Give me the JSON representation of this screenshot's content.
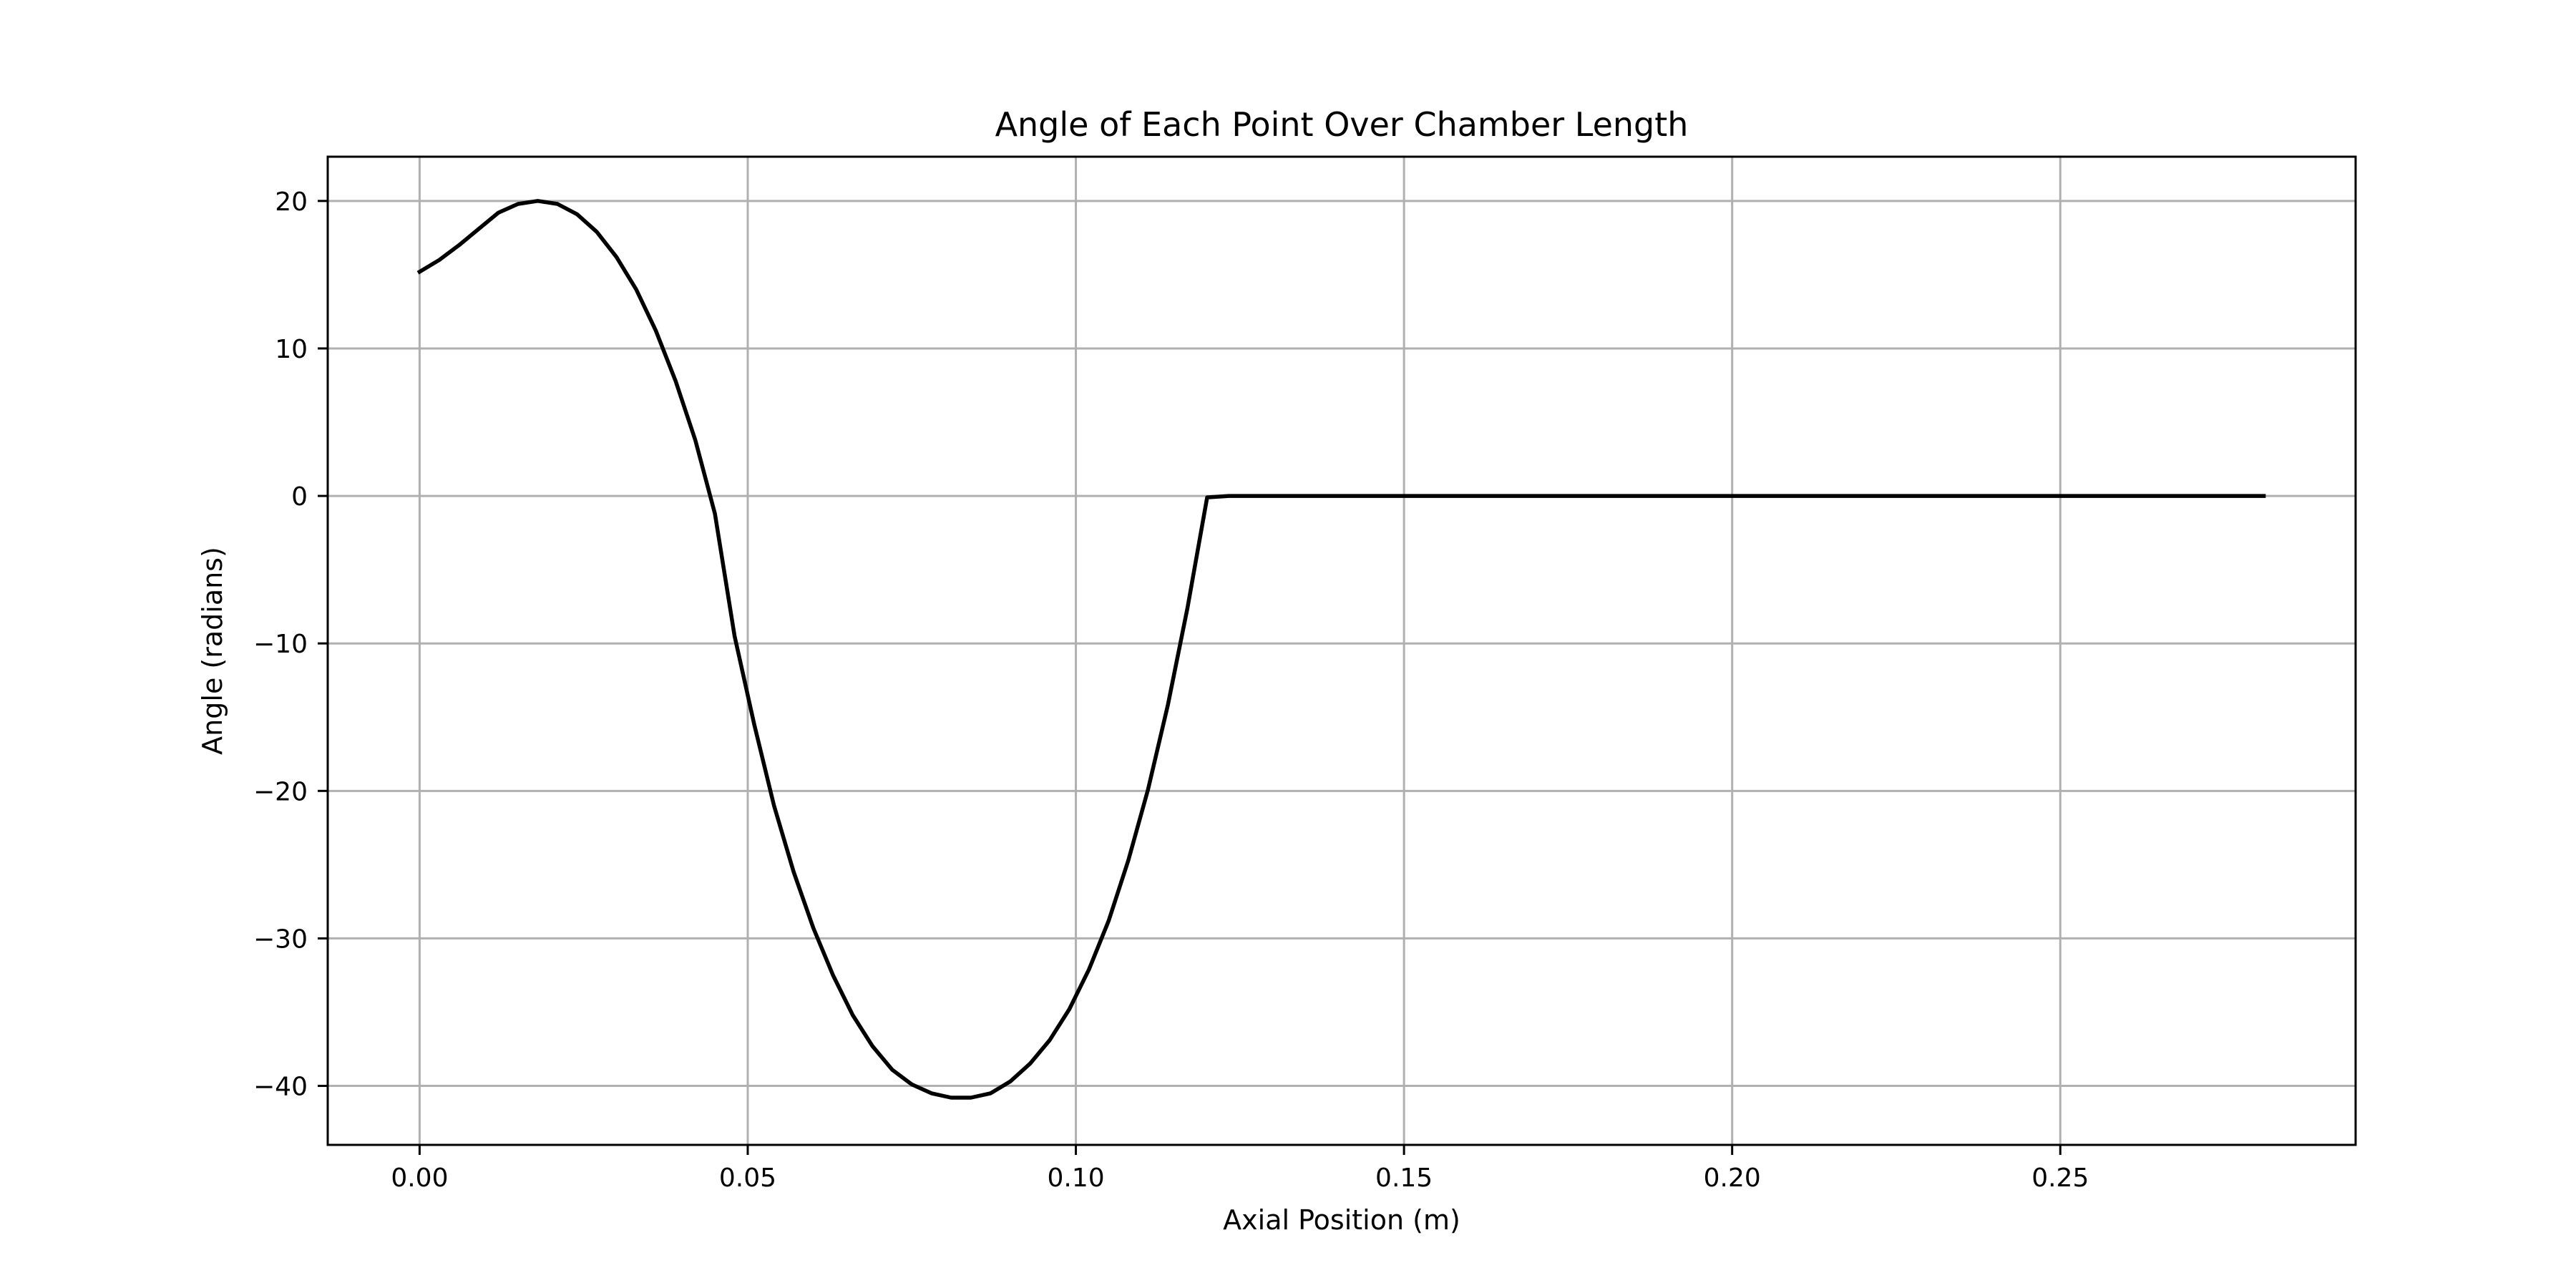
{
  "chart_data": {
    "type": "line",
    "title": "Angle of Each Point Over Chamber Length",
    "xlabel": "Axial Position (m)",
    "ylabel": "Angle (radians)",
    "xlim": [
      -0.014,
      0.295
    ],
    "ylim": [
      -44,
      23
    ],
    "xticks": [
      0.0,
      0.05,
      0.1,
      0.15,
      0.2,
      0.25
    ],
    "xtick_labels": [
      "0.00",
      "0.05",
      "0.10",
      "0.15",
      "0.20",
      "0.25"
    ],
    "yticks": [
      20,
      10,
      0,
      -10,
      -20,
      -30,
      -40
    ],
    "ytick_labels": [
      "20",
      "10",
      "0",
      "−10",
      "−20",
      "−30",
      "−40"
    ],
    "grid": true,
    "line_color": "#000000",
    "grid_color": "#b0b0b0",
    "series": [
      {
        "x": [
          0.0,
          0.003,
          0.006,
          0.009,
          0.012,
          0.015,
          0.018,
          0.021,
          0.024,
          0.027,
          0.03,
          0.033,
          0.036,
          0.039,
          0.042,
          0.045,
          0.048,
          0.051,
          0.054,
          0.057,
          0.06,
          0.063,
          0.066,
          0.069,
          0.072,
          0.075,
          0.078,
          0.081,
          0.084,
          0.087,
          0.09,
          0.093,
          0.096,
          0.099,
          0.102,
          0.105,
          0.108,
          0.111,
          0.114,
          0.117,
          0.12,
          0.1233,
          0.281
        ],
        "y": [
          15.2,
          16.0,
          17.0,
          18.1,
          19.2,
          19.8,
          20.0,
          19.8,
          19.1,
          17.9,
          16.2,
          14.0,
          11.2,
          7.8,
          3.8,
          -1.2,
          -9.5,
          -15.5,
          -21.0,
          -25.5,
          -29.3,
          -32.5,
          -35.2,
          -37.3,
          -38.9,
          -39.9,
          -40.5,
          -40.8,
          -40.8,
          -40.5,
          -39.7,
          -38.5,
          -36.9,
          -34.8,
          -32.1,
          -28.8,
          -24.7,
          -19.9,
          -14.2,
          -7.6,
          -0.1,
          0.0,
          0.0
        ]
      }
    ]
  }
}
